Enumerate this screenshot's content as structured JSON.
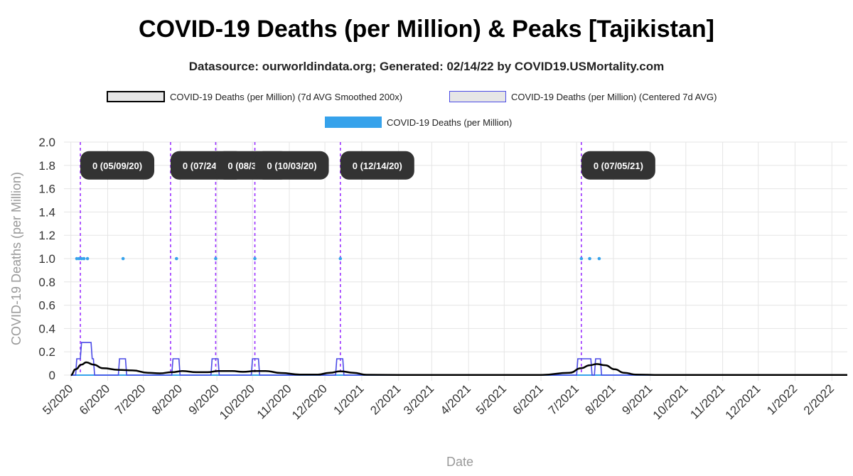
{
  "title": "COVID-19 Deaths (per Million) & Peaks [Tajikistan]",
  "subtitle": "Datasource: ourworldindata.org; Generated: 02/14/22 by COVID19.USMortality.com",
  "legend": [
    {
      "label": "COVID-19 Deaths (per Million) (7d AVG Smoothed 200x)",
      "stroke": "#000000",
      "fill": "#e6e6e6"
    },
    {
      "label": "COVID-19 Deaths (per Million) (Centered 7d AVG)",
      "stroke": "#4a4ae6",
      "fill": "#e6e6e6"
    },
    {
      "label": "COVID-19 Deaths (per Million)",
      "stroke": "#36a2eb",
      "fill": "#36a2eb"
    }
  ],
  "colors": {
    "smoothed": "#000000",
    "centered": "#4a4ae6",
    "daily": "#36a2eb",
    "peak_line": "#9b30ff",
    "label_bg": "#333333",
    "grid": "#e5e5e5"
  },
  "chart_data": {
    "type": "line",
    "xlabel": "Date",
    "ylabel": "COVID-19 Deaths (per Million)",
    "ylim": [
      0,
      2.0
    ],
    "yticks": [
      "0",
      "0.2",
      "0.4",
      "0.6",
      "0.8",
      "1.0",
      "1.2",
      "1.4",
      "1.6",
      "1.8",
      "2.0"
    ],
    "xlim": [
      "2020-04-30",
      "2022-02-14"
    ],
    "xtick_labels": [
      "5/2020",
      "6/2020",
      "7/2020",
      "8/2020",
      "9/2020",
      "10/2020",
      "11/2020",
      "12/2020",
      "1/2021",
      "2/2021",
      "3/2021",
      "4/2021",
      "5/2021",
      "6/2021",
      "7/2021",
      "8/2021",
      "9/2021",
      "10/2021",
      "11/2021",
      "12/2021",
      "1/2022",
      "2/2022"
    ],
    "xtick_dates": [
      "2020-05-01",
      "2020-06-01",
      "2020-07-01",
      "2020-08-01",
      "2020-09-01",
      "2020-10-01",
      "2020-11-01",
      "2020-12-01",
      "2021-01-01",
      "2021-02-01",
      "2021-03-01",
      "2021-04-01",
      "2021-05-01",
      "2021-06-01",
      "2021-07-01",
      "2021-08-01",
      "2021-09-01",
      "2021-10-01",
      "2021-11-01",
      "2021-12-01",
      "2022-01-01",
      "2022-02-01"
    ],
    "grid": true,
    "legend_position": "top",
    "series": [
      {
        "name": "COVID-19 Deaths (per Million) (7d AVG Smoothed 200x)",
        "style": "line",
        "points": [
          [
            "2020-05-01",
            0.0
          ],
          [
            "2020-05-05",
            0.05
          ],
          [
            "2020-05-10",
            0.09
          ],
          [
            "2020-05-14",
            0.11
          ],
          [
            "2020-05-20",
            0.09
          ],
          [
            "2020-05-28",
            0.06
          ],
          [
            "2020-06-10",
            0.045
          ],
          [
            "2020-06-22",
            0.04
          ],
          [
            "2020-07-05",
            0.02
          ],
          [
            "2020-07-15",
            0.015
          ],
          [
            "2020-07-25",
            0.025
          ],
          [
            "2020-08-03",
            0.035
          ],
          [
            "2020-08-15",
            0.025
          ],
          [
            "2020-08-24",
            0.025
          ],
          [
            "2020-09-02",
            0.035
          ],
          [
            "2020-09-14",
            0.035
          ],
          [
            "2020-09-23",
            0.028
          ],
          [
            "2020-10-03",
            0.035
          ],
          [
            "2020-10-12",
            0.035
          ],
          [
            "2020-10-25",
            0.018
          ],
          [
            "2020-11-10",
            0.005
          ],
          [
            "2020-11-25",
            0.004
          ],
          [
            "2020-12-05",
            0.02
          ],
          [
            "2020-12-14",
            0.033
          ],
          [
            "2020-12-25",
            0.02
          ],
          [
            "2021-01-05",
            0.003
          ],
          [
            "2021-02-01",
            0.002
          ],
          [
            "2021-06-01",
            0.002
          ],
          [
            "2021-06-25",
            0.02
          ],
          [
            "2021-07-05",
            0.06
          ],
          [
            "2021-07-12",
            0.085
          ],
          [
            "2021-07-18",
            0.095
          ],
          [
            "2021-07-25",
            0.085
          ],
          [
            "2021-08-02",
            0.05
          ],
          [
            "2021-08-10",
            0.02
          ],
          [
            "2021-08-20",
            0.005
          ],
          [
            "2021-09-10",
            0.002
          ],
          [
            "2022-02-14",
            0.002
          ]
        ]
      },
      {
        "name": "COVID-19 Deaths (per Million) (Centered 7d AVG)",
        "style": "line",
        "points": [
          [
            "2020-05-01",
            0.0
          ],
          [
            "2020-05-05",
            0.0
          ],
          [
            "2020-05-06",
            0.14
          ],
          [
            "2020-05-09",
            0.14
          ],
          [
            "2020-05-10",
            0.28
          ],
          [
            "2020-05-18",
            0.28
          ],
          [
            "2020-05-19",
            0.14
          ],
          [
            "2020-05-20",
            0.14
          ],
          [
            "2020-05-21",
            0.0
          ],
          [
            "2020-06-10",
            0.0
          ],
          [
            "2020-06-11",
            0.14
          ],
          [
            "2020-06-16",
            0.14
          ],
          [
            "2020-06-17",
            0.0
          ],
          [
            "2020-07-25",
            0.0
          ],
          [
            "2020-07-26",
            0.14
          ],
          [
            "2020-07-31",
            0.14
          ],
          [
            "2020-08-01",
            0.0
          ],
          [
            "2020-08-27",
            0.0
          ],
          [
            "2020-08-28",
            0.14
          ],
          [
            "2020-09-02",
            0.14
          ],
          [
            "2020-09-03",
            0.0
          ],
          [
            "2020-09-30",
            0.0
          ],
          [
            "2020-10-01",
            0.14
          ],
          [
            "2020-10-06",
            0.14
          ],
          [
            "2020-10-07",
            0.0
          ],
          [
            "2020-12-10",
            0.0
          ],
          [
            "2020-12-11",
            0.14
          ],
          [
            "2020-12-16",
            0.14
          ],
          [
            "2020-12-17",
            0.0
          ],
          [
            "2021-07-01",
            0.0
          ],
          [
            "2021-07-02",
            0.14
          ],
          [
            "2021-07-13",
            0.14
          ],
          [
            "2021-07-14",
            0.0
          ],
          [
            "2021-07-16",
            0.0
          ],
          [
            "2021-07-17",
            0.14
          ],
          [
            "2021-07-21",
            0.14
          ],
          [
            "2021-07-22",
            0.0
          ],
          [
            "2022-02-14",
            0.0
          ]
        ]
      },
      {
        "name": "COVID-19 Deaths (per Million)",
        "style": "points",
        "points": [
          [
            "2020-05-06",
            1
          ],
          [
            "2020-05-08",
            1
          ],
          [
            "2020-05-10",
            1
          ],
          [
            "2020-05-12",
            1
          ],
          [
            "2020-05-15",
            1
          ],
          [
            "2020-06-14",
            1
          ],
          [
            "2020-07-29",
            1
          ],
          [
            "2020-08-31",
            1
          ],
          [
            "2020-10-03",
            1
          ],
          [
            "2020-12-14",
            1
          ],
          [
            "2021-07-05",
            1
          ],
          [
            "2021-07-12",
            1
          ],
          [
            "2021-07-20",
            1
          ]
        ]
      }
    ],
    "peaks": [
      {
        "date": "2020-05-09",
        "label": "0 (05/09/20)"
      },
      {
        "date": "2020-07-24",
        "label": "0 (07/24/20)"
      },
      {
        "date": "2020-08-31",
        "label": "0 (08/31/20)"
      },
      {
        "date": "2020-10-03",
        "label": "0 (10/03/20)"
      },
      {
        "date": "2020-12-14",
        "label": "0 (12/14/20)"
      },
      {
        "date": "2021-07-05",
        "label": "0 (07/05/21)"
      }
    ]
  }
}
